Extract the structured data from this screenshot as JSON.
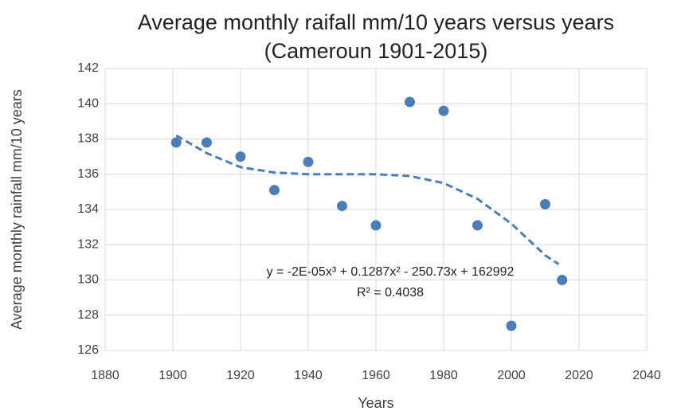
{
  "chart_data": {
    "type": "scatter",
    "title": [
      "Average monthly raifall mm/10 years versus years",
      "(Cameroun 1901-2015)"
    ],
    "x_label": "Years",
    "y_label": "Average monthly rainfall mm/10 years",
    "series": [
      {
        "color": "#4a7ebb",
        "x": [
          1901,
          1910,
          1920,
          1930,
          1940,
          1950,
          1960,
          1970,
          1980,
          1990,
          2000,
          2010,
          2015
        ],
        "values": [
          137.8,
          137.8,
          137.0,
          135.1,
          136.7,
          134.2,
          133.1,
          140.1,
          139.6,
          133.1,
          127.4,
          134.3,
          130.0
        ]
      }
    ],
    "trendline": {
      "color": "#4a7ebb",
      "x": [
        1901,
        1910,
        1920,
        1930,
        1940,
        1950,
        1960,
        1970,
        1980,
        1990,
        2000,
        2005,
        2010,
        2014
      ],
      "values": [
        138.2,
        137.2,
        136.4,
        136.1,
        136.0,
        136.0,
        136.0,
        135.9,
        135.5,
        134.6,
        133.2,
        132.3,
        131.4,
        130.9
      ],
      "equation": "y = -2E-05x³ + 0.1287x² - 250.73x + 162992",
      "r2": "R² = 0.4038"
    },
    "xlim": [
      1880,
      2040
    ],
    "xticks": [
      1880,
      1900,
      1920,
      1940,
      1960,
      1980,
      2000,
      2020,
      2040
    ],
    "ylim": [
      126,
      142
    ],
    "yticks": [
      126,
      128,
      130,
      132,
      134,
      136,
      138,
      140,
      142
    ],
    "grid": true
  }
}
